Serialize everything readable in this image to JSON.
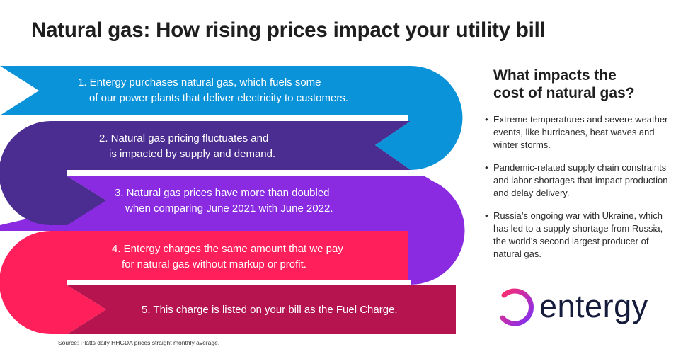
{
  "title": "Natural gas: How rising prices impact your utility bill",
  "steps": [
    {
      "line1": "1. Entergy purchases natural gas, which fuels some",
      "line2": "of our power plants that deliver electricity to customers.",
      "color": "#0b93d9"
    },
    {
      "line1": "2. Natural gas pricing fluctuates and",
      "line2": "is impacted by supply and demand.",
      "color": "#4b2d92"
    },
    {
      "line1": "3. Natural gas prices have more than doubled",
      "line2": "when comparing June 2021 with June 2022.",
      "color": "#8a2be2"
    },
    {
      "line1": "4. Entergy charges the same amount that we pay",
      "line2": "for natural gas without markup or profit.",
      "color": "#ff1f5a"
    },
    {
      "line1": "5. This charge is listed on your bill as the Fuel Charge.",
      "line2": "",
      "color": "#b5144f"
    }
  ],
  "sidebar": {
    "heading_line1": "What impacts the",
    "heading_line2": "cost of natural gas?",
    "bullets": [
      "Extreme temperatures and severe weather events, like hurricanes, heat waves and winter storms.",
      "Pandemic-related supply chain constraints and labor shortages that impact production and delay delivery.",
      "Russia’s ongoing war with Ukraine, which has led to a supply shortage from Russia, the world’s second largest producer of natural gas."
    ]
  },
  "logo": {
    "word": "entergy",
    "icon": "entergy-e-logo-icon",
    "gradient": [
      "#ff2d6f",
      "#7b2ff7"
    ]
  },
  "source": "Source: Platts daily HHGDA prices straight monthly average."
}
